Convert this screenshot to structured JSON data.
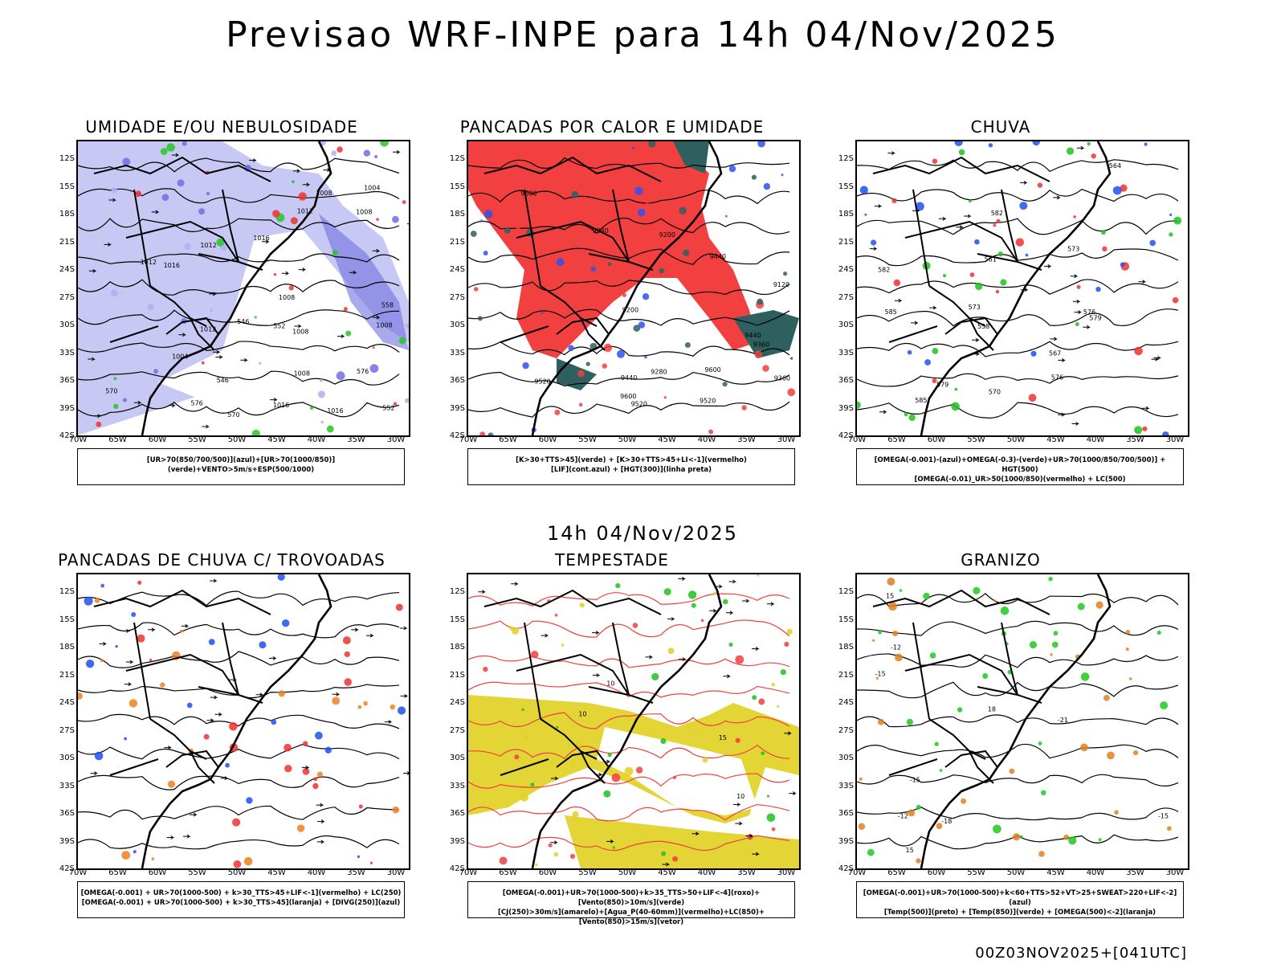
{
  "header": {
    "title": "Previsao WRF-INPE  para 14h 04/Nov/2025"
  },
  "middle": {
    "subtitle": "14h 04/Nov/2025"
  },
  "footer": {
    "run": "00Z03NOV2025+[041UTC]"
  },
  "axes": {
    "y_labels": [
      "12S",
      "15S",
      "18S",
      "21S",
      "24S",
      "27S",
      "30S",
      "33S",
      "36S",
      "39S",
      "42S"
    ],
    "x_labels": [
      "70W",
      "65W",
      "60W",
      "55W",
      "50W",
      "45W",
      "40W",
      "35W",
      "30W"
    ]
  },
  "panels": [
    {
      "title": "UMIDADE E/OU NEBULOSIDADE",
      "legend": [
        "[UR>70(850/700/500)](azul)+[UR>70(1000/850)](verde)+VENTO>5m/s+ESP(500/1000)"
      ],
      "labels": [
        "1008",
        "1008",
        "1008",
        "1008",
        "1004",
        "1004",
        "1008",
        "1012",
        "1012",
        "1016",
        "1016",
        "1012",
        "1016",
        "1012",
        "1016",
        "1008",
        "576",
        "576",
        "570",
        "570",
        "558",
        "552",
        "552",
        "546",
        "546"
      ],
      "colors": {
        "fill": "#b0b0f0",
        "fill2": "#7070e0",
        "green": "#22c822",
        "red": "#f03030"
      }
    },
    {
      "title": "PANCADAS POR CALOR E UMIDADE",
      "legend": [
        "[K>30+TTS>45](verde) + [K>30+TTS>45+LI<-1](vermelho)",
        "[LIF](cont.azul) + [HGT(300)](linha preta)"
      ],
      "labels": [
        "9600",
        "9600",
        "9600",
        "9520",
        "9520",
        "9520",
        "9440",
        "9440",
        "9440",
        "9360",
        "9360",
        "9280",
        "9280",
        "9200",
        "9200",
        "9120"
      ],
      "colors": {
        "fill": "#f24040",
        "fill2": "#2f6060",
        "blue": "#3050f0"
      }
    },
    {
      "title": "CHUVA",
      "legend": [
        "[OMEGA(-0.001)-(azul)+OMEGA(-0.3)-(verde)+UR>70(1000/850/700/500)] + HGT(500)",
        "[OMEGA(-0.01)_UR>50(1000/850)(vermelho) + LC(500)"
      ],
      "labels": [
        "585",
        "582",
        "579",
        "576",
        "573",
        "570",
        "567",
        "564",
        "561",
        "558",
        "585",
        "582",
        "579",
        "576",
        "573"
      ],
      "colors": {
        "blue": "#2050f0",
        "green": "#20c020",
        "red": "#f03030"
      }
    },
    {
      "title": "PANCADAS DE CHUVA C/ TROVOADAS",
      "legend": [
        "[OMEGA(-0.001) + UR>70(1000-500) + k>30_TTS>45+LIF<-1](vermelho) + LC(250)",
        "[OMEGA(-0.001) + UR>70(1000-500) + k>30_TTS>45](laranja) + [DIVG(250)](azul)"
      ],
      "labels": [],
      "colors": {
        "blue": "#2050f0",
        "orange": "#f08020",
        "red": "#f03030"
      }
    },
    {
      "title": "TEMPESTADE",
      "legend": [
        "[OMEGA(-0.001)+UR>70(1000-500)+k>35_TTS>50+LIF<-4](roxo)+[Vento(850)>10m/s](verde)",
        "[CJ(250)>30m/s](amarelo)+[Agua_P(40-60mm)](vermelho)+LC(850)+[Vento(850)>15m/s](vetor)"
      ],
      "labels": [
        "10",
        "10",
        "15",
        "10"
      ],
      "colors": {
        "yellow": "#e0d020",
        "green": "#20c020",
        "red": "#f04040"
      }
    },
    {
      "title": "GRANIZO",
      "legend": [
        "[OMEGA(-0.001)+UR>70(1000-500)+k<60+TTS>52+VT>25+SWEAT>220+LIF<-2](azul)",
        "[Temp(500)](preto) + [Temp(850)](verde) + [OMEGA(500)<-2](laranja)"
      ],
      "labels": [
        "-12",
        "-12",
        "-15",
        "-15",
        "-15",
        "-18",
        "-21",
        "15",
        "15",
        "18"
      ],
      "colors": {
        "green": "#20c820",
        "orange": "#e08020",
        "black": "#000000"
      }
    }
  ]
}
